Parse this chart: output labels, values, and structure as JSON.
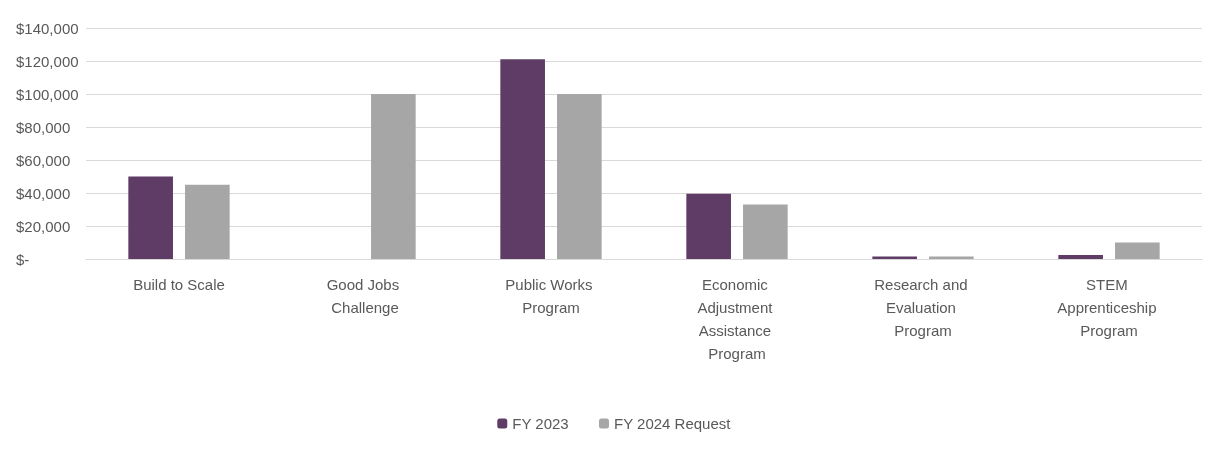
{
  "chart_data": {
    "type": "bar",
    "categories": [
      "Build to Scale",
      "Good Jobs Challenge",
      "Public Works Program",
      "Economic Adjustment Assistance Program",
      "Research and Evaluation Program",
      "STEM Apprenticeship Program"
    ],
    "series": [
      {
        "name": "FY 2023",
        "color": "#5f3c66",
        "values": [
          50000,
          null,
          121000,
          39500,
          1500,
          2500
        ]
      },
      {
        "name": "FY 2024 Request",
        "color": "#a6a6a6",
        "values": [
          45000,
          100000,
          100000,
          33000,
          1500,
          10000
        ]
      }
    ],
    "ylim": [
      0,
      140000
    ],
    "yticks": [
      {
        "value": 0,
        "label": "$-"
      },
      {
        "value": 20000,
        "label": "$20,000"
      },
      {
        "value": 40000,
        "label": "$40,000"
      },
      {
        "value": 60000,
        "label": "$60,000"
      },
      {
        "value": 80000,
        "label": "$80,000"
      },
      {
        "value": 100000,
        "label": "$100,000"
      },
      {
        "value": 120000,
        "label": "$120,000"
      },
      {
        "value": 140000,
        "label": "$140,000"
      }
    ],
    "grid": "y",
    "legend": "bottom"
  }
}
